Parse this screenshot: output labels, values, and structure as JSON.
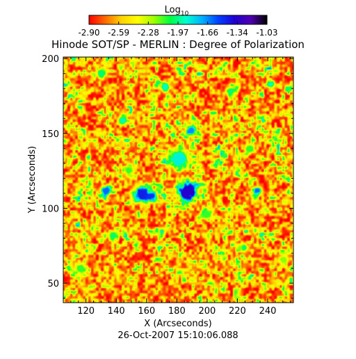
{
  "chart_data": {
    "type": "heatmap",
    "title": "Hinode SOT/SP - MERLIN : Degree of Polarization",
    "footer": "26-Oct-2007 15:10:06.088",
    "xlabel": "X (Arcseconds)",
    "ylabel": "Y (Arcseconds)",
    "xlim": [
      105,
      257
    ],
    "ylim": [
      37,
      201
    ],
    "xticks": [
      120,
      140,
      160,
      180,
      200,
      220,
      240
    ],
    "yticks": [
      50,
      100,
      150,
      200
    ],
    "colorbar": {
      "label_base": "Log",
      "label_sub": "10",
      "range": [
        -2.9,
        -1.03
      ],
      "tick_labels": [
        "-2.90",
        "-2.59",
        "-2.28",
        "-1.97",
        "-1.66",
        "-1.34",
        "-1.03"
      ],
      "colors": [
        "#ff0000",
        "#ff6a00",
        "#ffd200",
        "#ffff00",
        "#a0ff00",
        "#00ff40",
        "#00ffd0",
        "#00b0ff",
        "#0040ff",
        "#2000d0",
        "#5000b0",
        "#000000"
      ]
    },
    "field": {
      "background_level": "low (-2.9 to -2.6, red/orange)",
      "speckle_level": "mid (-2.3 to -2.0, yellow)",
      "network_patches": [
        {
          "x": 157,
          "y": 110,
          "r": 5,
          "peak": -1.45
        },
        {
          "x": 187,
          "y": 111,
          "r": 6,
          "peak": -1.35
        },
        {
          "x": 181,
          "y": 133,
          "r": 6,
          "peak": -1.85
        },
        {
          "x": 189,
          "y": 152,
          "r": 3,
          "peak": -1.65
        },
        {
          "x": 133,
          "y": 112,
          "r": 3,
          "peak": -1.6
        },
        {
          "x": 233,
          "y": 112,
          "r": 2.5,
          "peak": -1.6
        },
        {
          "x": 163,
          "y": 108,
          "r": 3,
          "peak": -1.5
        },
        {
          "x": 242,
          "y": 183,
          "r": 2.5,
          "peak": -1.9
        },
        {
          "x": 130,
          "y": 190,
          "r": 3,
          "peak": -2.0
        },
        {
          "x": 215,
          "y": 178,
          "r": 3,
          "peak": -2.0
        },
        {
          "x": 172,
          "y": 181,
          "r": 3,
          "peak": -1.9
        },
        {
          "x": 138,
          "y": 82,
          "r": 3,
          "peak": -2.0
        },
        {
          "x": 224,
          "y": 74,
          "r": 2.5,
          "peak": -2.0
        },
        {
          "x": 144,
          "y": 159,
          "r": 2.5,
          "peak": -1.9
        },
        {
          "x": 200,
          "y": 96,
          "r": 3,
          "peak": -2.1
        },
        {
          "x": 116,
          "y": 60,
          "r": 3,
          "peak": -2.1
        },
        {
          "x": 228,
          "y": 140,
          "r": 3,
          "peak": -2.1
        },
        {
          "x": 250,
          "y": 66,
          "r": 3,
          "peak": -2.2
        },
        {
          "x": 148,
          "y": 125,
          "r": 3,
          "peak": -2.1
        }
      ]
    }
  }
}
